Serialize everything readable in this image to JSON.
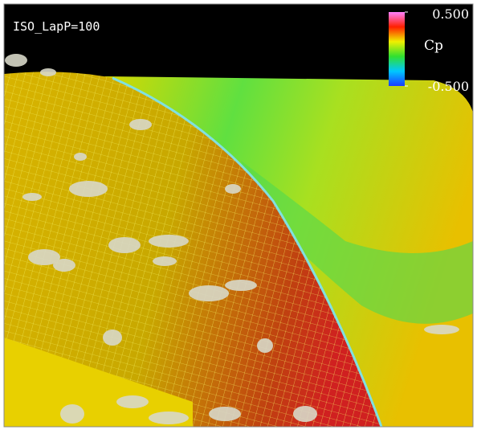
{
  "annotation": "ISO_LapP=100",
  "colorbar": {
    "label": "Cp",
    "lim": [
      -0.5,
      0.5
    ],
    "ticks": [
      {
        "value": 0.5,
        "label": "0.500"
      },
      {
        "value": -0.5,
        "label": "-0.500"
      }
    ]
  }
}
